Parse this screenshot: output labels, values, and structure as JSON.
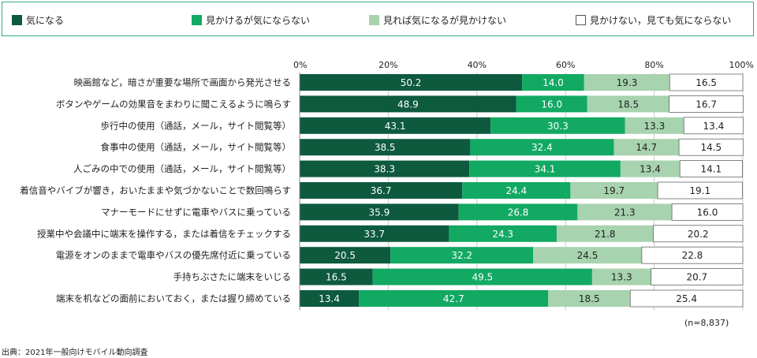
{
  "legend": [
    {
      "label": "気になる",
      "color": "#0d5a3e"
    },
    {
      "label": "見かけるが気にならない",
      "color": "#12a963"
    },
    {
      "label": "見れば気になるが見かけない",
      "color": "#a7d3ae"
    },
    {
      "label": "見かけない，見ても気にならない",
      "color": "#ffffff"
    }
  ],
  "chart_data": {
    "type": "bar",
    "orientation": "horizontal",
    "stacked": true,
    "xlim": [
      0,
      100
    ],
    "x_ticks": [
      "0%",
      "20%",
      "40%",
      "60%",
      "80%",
      "100%"
    ],
    "categories": [
      "映画館など，暗さが重要な場所で画面から発光させる",
      "ボタンやゲームの効果音をまわりに聞こえるように鳴らす",
      "歩行中の使用（通話，メール，サイト閲覧等）",
      "食事中の使用（通話，メール，サイト閲覧等）",
      "人ごみの中での使用（通話，メール，サイト閲覧等）",
      "着信音やバイブが響き，おいたままや気づかないことで数回鳴らす",
      "マナーモードにせずに電車やバスに乗っている",
      "授業中や会議中に端末を操作する，または着信をチェックする",
      "電源をオンのままで電車やバスの優先席付近に乗っている",
      "手持ちぶさたに端末をいじる",
      "端末を机などの面前においておく，または握り締めている"
    ],
    "series": [
      {
        "name": "気になる",
        "color": "#0d5a3e",
        "label_color": "#ffffff",
        "values": [
          50.2,
          48.9,
          43.1,
          38.5,
          38.3,
          36.7,
          35.9,
          33.7,
          20.5,
          16.5,
          13.4
        ]
      },
      {
        "name": "見かけるが気にならない",
        "color": "#12a963",
        "label_color": "#ffffff",
        "values": [
          14.0,
          16.0,
          30.3,
          32.4,
          34.1,
          24.4,
          26.8,
          24.3,
          32.2,
          49.5,
          42.7
        ]
      },
      {
        "name": "見れば気になるが見かけない",
        "color": "#a7d3ae",
        "label_color": "#222222",
        "values": [
          19.3,
          18.5,
          13.3,
          14.7,
          13.4,
          19.7,
          21.3,
          21.8,
          24.5,
          13.3,
          18.5
        ]
      },
      {
        "name": "見かけない，見ても気にならない",
        "color": "#ffffff",
        "label_color": "#222222",
        "values": [
          16.5,
          16.7,
          13.4,
          14.5,
          14.1,
          19.1,
          16.0,
          20.2,
          22.8,
          20.7,
          25.4
        ]
      }
    ],
    "note": "(n=8,837)",
    "source": "出典：2021年一般向けモバイル動向調査"
  }
}
